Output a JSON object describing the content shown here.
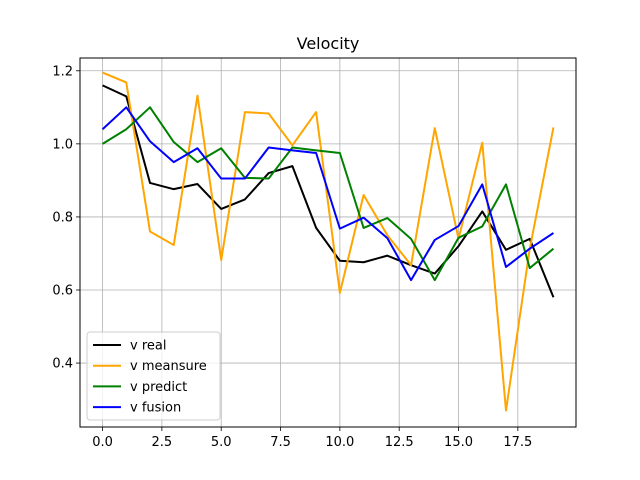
{
  "chart_data": {
    "type": "line",
    "title": "Velocity",
    "xlabel": "",
    "ylabel": "",
    "xlim": [
      -0.95,
      19.95
    ],
    "ylim": [
      0.225,
      1.235
    ],
    "x_ticks": [
      0.0,
      2.5,
      5.0,
      7.5,
      10.0,
      12.5,
      15.0,
      17.5
    ],
    "x_tick_labels": [
      "0.0",
      "2.5",
      "5.0",
      "7.5",
      "10.0",
      "12.5",
      "15.0",
      "17.5"
    ],
    "y_ticks": [
      0.4,
      0.6,
      0.8,
      1.0,
      1.2
    ],
    "y_tick_labels": [
      "0.4",
      "0.6",
      "0.8",
      "1.0",
      "1.2"
    ],
    "grid": true,
    "legend_position": "bottom-left",
    "x": [
      0,
      1,
      2,
      3,
      4,
      5,
      6,
      7,
      8,
      9,
      10,
      11,
      12,
      13,
      14,
      15,
      16,
      17,
      18,
      19
    ],
    "series": [
      {
        "name": "v real",
        "color": "#000000",
        "values": [
          1.16,
          1.13,
          0.893,
          0.876,
          0.89,
          0.822,
          0.848,
          0.92,
          0.939,
          0.77,
          0.68,
          0.676,
          0.694,
          0.668,
          0.645,
          0.72,
          0.815,
          0.71,
          0.74,
          0.58
        ]
      },
      {
        "name": "v meansure",
        "color": "#ffa500",
        "values": [
          1.195,
          1.168,
          0.76,
          0.723,
          1.132,
          0.682,
          1.087,
          1.083,
          0.996,
          1.087,
          0.592,
          0.86,
          0.75,
          0.668,
          1.043,
          0.74,
          1.003,
          0.27,
          0.712,
          1.045
        ]
      },
      {
        "name": "v predict",
        "color": "#008000",
        "values": [
          1.0,
          1.04,
          1.1,
          1.005,
          0.95,
          0.988,
          0.907,
          0.905,
          0.99,
          0.982,
          0.975,
          0.77,
          0.797,
          0.74,
          0.627,
          0.743,
          0.774,
          0.889,
          0.66,
          0.713
        ]
      },
      {
        "name": "v fusion",
        "color": "#0000ff",
        "values": [
          1.04,
          1.1,
          1.007,
          0.95,
          0.988,
          0.905,
          0.905,
          0.99,
          0.982,
          0.975,
          0.768,
          0.798,
          0.742,
          0.627,
          0.737,
          0.775,
          0.889,
          0.663,
          0.713,
          0.756
        ]
      }
    ]
  }
}
